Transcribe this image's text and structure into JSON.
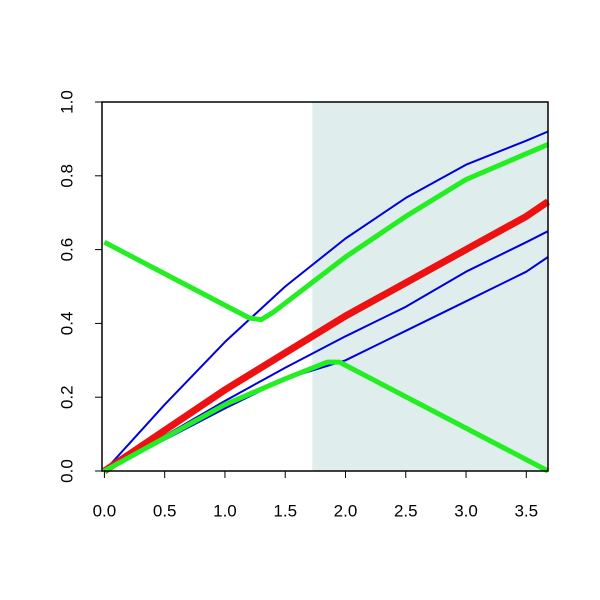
{
  "chart_data": {
    "type": "line",
    "xlim": [
      -0.02,
      3.68
    ],
    "ylim": [
      0,
      1
    ],
    "xticks": [
      {
        "value": 0,
        "label": "0.0"
      },
      {
        "value": 0.5,
        "label": "0.5"
      },
      {
        "value": 1,
        "label": "1.0"
      },
      {
        "value": 1.5,
        "label": "1.5"
      },
      {
        "value": 2,
        "label": "2.0"
      },
      {
        "value": 2.5,
        "label": "2.5"
      },
      {
        "value": 3,
        "label": "3.0"
      },
      {
        "value": 3.5,
        "label": "3.5"
      }
    ],
    "yticks": [
      {
        "value": 0,
        "label": "0.0"
      },
      {
        "value": 0.2,
        "label": "0.2"
      },
      {
        "value": 0.4,
        "label": "0.4"
      },
      {
        "value": 0.6,
        "label": "0.6"
      },
      {
        "value": 0.8,
        "label": "0.8"
      },
      {
        "value": 1,
        "label": "1.0"
      }
    ],
    "shaded_region": {
      "x": [
        1.725,
        3.68
      ],
      "color": "#e0eded"
    },
    "series": [
      {
        "color": "#0000dd",
        "width": 2,
        "x": [
          0,
          0.5,
          1,
          1.5,
          2,
          2.5,
          3,
          3.5,
          3.68
        ],
        "values": [
          0,
          0.18,
          0.35,
          0.5,
          0.63,
          0.74,
          0.83,
          0.895,
          0.92
        ]
      },
      {
        "color": "#0000dd",
        "width": 2,
        "x": [
          0,
          0.5,
          1,
          1.5,
          2,
          2.5,
          3,
          3.5,
          3.68
        ],
        "values": [
          0,
          0.095,
          0.19,
          0.28,
          0.365,
          0.445,
          0.54,
          0.62,
          0.65
        ]
      },
      {
        "color": "#0000dd",
        "width": 2,
        "x": [
          0,
          0.5,
          1,
          1.5,
          2,
          2.5,
          3,
          3.5,
          3.68
        ],
        "values": [
          0,
          0.085,
          0.17,
          0.25,
          0.3,
          0.38,
          0.46,
          0.54,
          0.58
        ]
      },
      {
        "color": "#ee1111",
        "width": 7,
        "x": [
          0,
          0.5,
          1,
          1.5,
          2,
          2.5,
          3,
          3.5,
          3.68
        ],
        "values": [
          0,
          0.11,
          0.22,
          0.32,
          0.42,
          0.51,
          0.6,
          0.69,
          0.73
        ]
      },
      {
        "color": "#22ee22",
        "width": 5,
        "x": [
          0,
          1.2,
          1.3,
          1.4,
          2,
          2.5,
          3,
          3.5,
          3.68
        ],
        "values": [
          0.62,
          0.415,
          0.41,
          0.43,
          0.58,
          0.69,
          0.79,
          0.86,
          0.885
        ]
      },
      {
        "color": "#22ee22",
        "width": 5,
        "x": [
          0,
          0.5,
          1,
          1.5,
          1.85,
          1.95,
          3.68
        ],
        "values": [
          0,
          0.09,
          0.18,
          0.25,
          0.295,
          0.295,
          0
        ]
      }
    ]
  }
}
